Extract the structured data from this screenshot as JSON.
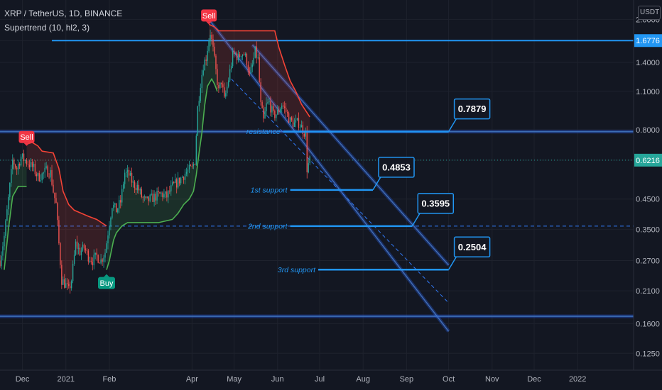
{
  "header": {
    "symbol_line": "XRP / TetherUS, 1D, BINANCE",
    "indicator_line": "Supertrend (10, hl2, 3)"
  },
  "price_axis": {
    "unit": "USDT",
    "ticks": [
      "2.0000",
      "1.6776",
      "1.4000",
      "1.1000",
      "0.8000",
      "0.6216",
      "0.4500",
      "0.3500",
      "0.2700",
      "0.2100",
      "0.1600",
      "0.1250"
    ],
    "current_price": "0.6216",
    "marked_level": "1.6776"
  },
  "time_axis": {
    "ticks": [
      "Dec",
      "2021",
      "Feb",
      "Apr",
      "May",
      "Jun",
      "Jul",
      "Aug",
      "Sep",
      "Oct",
      "Nov",
      "Dec",
      "2022"
    ]
  },
  "signals": [
    {
      "label": "Sell",
      "color": "#f23645"
    },
    {
      "label": "Sell",
      "color": "#f23645"
    },
    {
      "label": "Buy",
      "color": "#089981"
    }
  ],
  "levels": [
    {
      "name": "resistance",
      "value": "0.7879"
    },
    {
      "name": "1st support",
      "value": "0.4853"
    },
    {
      "name": "2nd support",
      "value": "0.3595"
    },
    {
      "name": "3rd support",
      "value": "0.2504"
    }
  ],
  "colors": {
    "background": "#131722",
    "up_candle": "#26a69a",
    "down_candle": "#ef5350",
    "accent": "#2196f3",
    "supertrend_up": "#4caf50",
    "supertrend_down": "#f44336"
  },
  "chart_data": {
    "type": "candlestick",
    "scale": "log",
    "y_range": [
      0.11,
      2.35
    ],
    "x_range": [
      "2020-11-15",
      "2022-02-15"
    ],
    "price_ticks": [
      2.0,
      1.6776,
      1.4,
      1.1,
      0.8,
      0.6216,
      0.45,
      0.35,
      0.27,
      0.21,
      0.16,
      0.125
    ],
    "time_ticks": [
      "2020-12-01",
      "2021-01-01",
      "2021-02-01",
      "2021-04-01",
      "2021-05-01",
      "2021-06-01",
      "2021-07-01",
      "2021-08-01",
      "2021-09-01",
      "2021-10-01",
      "2021-11-01",
      "2021-12-01",
      "2022-01-01"
    ],
    "path": [
      [
        "2020-11-15",
        0.27
      ],
      [
        "2020-11-18",
        0.33
      ],
      [
        "2020-11-21",
        0.45
      ],
      [
        "2020-11-24",
        0.62
      ],
      [
        "2020-11-27",
        0.58
      ],
      [
        "2020-11-30",
        0.64
      ],
      [
        "2020-12-03",
        0.62
      ],
      [
        "2020-12-06",
        0.6
      ],
      [
        "2020-12-09",
        0.58
      ],
      [
        "2020-12-12",
        0.54
      ],
      [
        "2020-12-15",
        0.55
      ],
      [
        "2020-12-18",
        0.57
      ],
      [
        "2020-12-21",
        0.56
      ],
      [
        "2020-12-23",
        0.48
      ],
      [
        "2020-12-25",
        0.43
      ],
      [
        "2020-12-27",
        0.31
      ],
      [
        "2020-12-29",
        0.23
      ],
      [
        "2021-01-01",
        0.22
      ],
      [
        "2021-01-03",
        0.21
      ],
      [
        "2021-01-05",
        0.23
      ],
      [
        "2021-01-08",
        0.31
      ],
      [
        "2021-01-11",
        0.29
      ],
      [
        "2021-01-14",
        0.3
      ],
      [
        "2021-01-17",
        0.28
      ],
      [
        "2021-01-20",
        0.27
      ],
      [
        "2021-01-23",
        0.28
      ],
      [
        "2021-01-26",
        0.27
      ],
      [
        "2021-01-29",
        0.29
      ],
      [
        "2021-02-01",
        0.37
      ],
      [
        "2021-02-03",
        0.43
      ],
      [
        "2021-02-06",
        0.41
      ],
      [
        "2021-02-09",
        0.44
      ],
      [
        "2021-02-12",
        0.56
      ],
      [
        "2021-02-15",
        0.55
      ],
      [
        "2021-02-18",
        0.51
      ],
      [
        "2021-02-21",
        0.5
      ],
      [
        "2021-02-24",
        0.46
      ],
      [
        "2021-02-27",
        0.44
      ],
      [
        "2021-03-02",
        0.45
      ],
      [
        "2021-03-06",
        0.46
      ],
      [
        "2021-03-10",
        0.47
      ],
      [
        "2021-03-14",
        0.46
      ],
      [
        "2021-03-18",
        0.5
      ],
      [
        "2021-03-22",
        0.52
      ],
      [
        "2021-03-26",
        0.55
      ],
      [
        "2021-03-29",
        0.57
      ],
      [
        "2021-04-01",
        0.58
      ],
      [
        "2021-04-03",
        0.62
      ],
      [
        "2021-04-05",
        0.96
      ],
      [
        "2021-04-07",
        1.18
      ],
      [
        "2021-04-09",
        1.37
      ],
      [
        "2021-04-11",
        1.46
      ],
      [
        "2021-04-13",
        1.7
      ],
      [
        "2021-04-14",
        1.8
      ],
      [
        "2021-04-16",
        1.55
      ],
      [
        "2021-04-18",
        1.3
      ],
      [
        "2021-04-20",
        1.1
      ],
      [
        "2021-04-22",
        1.2
      ],
      [
        "2021-04-24",
        1.02
      ],
      [
        "2021-04-26",
        1.14
      ],
      [
        "2021-04-28",
        1.3
      ],
      [
        "2021-04-30",
        1.48
      ],
      [
        "2021-05-02",
        1.5
      ],
      [
        "2021-05-04",
        1.45
      ],
      [
        "2021-05-06",
        1.52
      ],
      [
        "2021-05-08",
        1.5
      ],
      [
        "2021-05-10",
        1.42
      ],
      [
        "2021-05-12",
        1.25
      ],
      [
        "2021-05-14",
        1.36
      ],
      [
        "2021-05-16",
        1.53
      ],
      [
        "2021-05-18",
        1.43
      ],
      [
        "2021-05-20",
        0.98
      ],
      [
        "2021-05-22",
        0.86
      ],
      [
        "2021-05-24",
        0.98
      ],
      [
        "2021-05-26",
        1.0
      ],
      [
        "2021-05-29",
        0.9
      ],
      [
        "2021-06-01",
        0.92
      ],
      [
        "2021-06-04",
        0.99
      ],
      [
        "2021-06-07",
        0.93
      ],
      [
        "2021-06-10",
        0.86
      ],
      [
        "2021-06-13",
        0.84
      ],
      [
        "2021-06-16",
        0.85
      ],
      [
        "2021-06-19",
        0.8
      ],
      [
        "2021-06-21",
        0.77
      ],
      [
        "2021-06-22",
        0.58
      ],
      [
        "2021-06-24",
        0.62
      ]
    ],
    "supertrend": {
      "down": [
        [
          [
            "2020-12-04",
            0.71
          ],
          [
            "2020-12-08",
            0.72
          ],
          [
            "2020-12-12",
            0.7
          ],
          [
            "2020-12-15",
            0.67
          ],
          [
            "2020-12-23",
            0.66
          ],
          [
            "2020-12-27",
            0.58
          ],
          [
            "2020-12-30",
            0.48
          ],
          [
            "2021-01-03",
            0.43
          ],
          [
            "2021-01-07",
            0.41
          ],
          [
            "2021-01-12",
            0.4
          ],
          [
            "2021-01-17",
            0.39
          ],
          [
            "2021-01-23",
            0.38
          ],
          [
            "2021-01-30",
            0.36
          ]
        ],
        [
          [
            "2021-04-13",
            1.92
          ],
          [
            "2021-04-17",
            1.88
          ],
          [
            "2021-04-20",
            1.82
          ],
          [
            "2021-05-30",
            1.82
          ],
          [
            "2021-06-02",
            1.58
          ],
          [
            "2021-06-06",
            1.37
          ],
          [
            "2021-06-10",
            1.2
          ],
          [
            "2021-06-14",
            1.1
          ],
          [
            "2021-06-18",
            0.99
          ],
          [
            "2021-06-24",
            0.89
          ]
        ]
      ],
      "up": [
        [
          [
            "2020-11-18",
            0.25
          ],
          [
            "2020-11-21",
            0.35
          ],
          [
            "2020-11-24",
            0.46
          ],
          [
            "2020-11-28",
            0.5
          ],
          [
            "2020-12-04",
            0.5
          ]
        ],
        [
          [
            "2021-01-30",
            0.25
          ],
          [
            "2021-02-01",
            0.27
          ],
          [
            "2021-02-04",
            0.32
          ],
          [
            "2021-02-06",
            0.34
          ],
          [
            "2021-02-10",
            0.36
          ],
          [
            "2021-02-14",
            0.37
          ],
          [
            "2021-02-20",
            0.37
          ],
          [
            "2021-03-08",
            0.37
          ],
          [
            "2021-03-18",
            0.38
          ],
          [
            "2021-03-22",
            0.4
          ],
          [
            "2021-03-26",
            0.43
          ],
          [
            "2021-03-30",
            0.45
          ],
          [
            "2021-04-02",
            0.48
          ],
          [
            "2021-04-04",
            0.55
          ],
          [
            "2021-04-06",
            0.66
          ],
          [
            "2021-04-08",
            0.78
          ],
          [
            "2021-04-10",
            0.98
          ],
          [
            "2021-04-12",
            1.15
          ],
          [
            "2021-04-15",
            1.22
          ],
          [
            "2021-04-17",
            1.17
          ],
          [
            "2021-04-19",
            1.1
          ]
        ]
      ]
    },
    "signal_points": [
      {
        "label": "Sell",
        "date": "2021-04-13",
        "price": 1.92,
        "kind": "sell"
      },
      {
        "label": "Sell",
        "date": "2020-12-04",
        "price": 0.7,
        "kind": "sell"
      },
      {
        "label": "Buy",
        "date": "2021-01-30",
        "price": 0.25,
        "kind": "buy"
      }
    ],
    "horizontal_levels": [
      {
        "price": 1.6776,
        "from": "2020-12-22",
        "kind": "blue"
      },
      {
        "price": 0.7879,
        "from": "2020-11-15",
        "kind": "band"
      },
      {
        "price": 0.17,
        "from": "2020-11-15",
        "kind": "band"
      },
      {
        "price": 0.3595,
        "from": "2020-11-15",
        "kind": "dashed"
      },
      {
        "price": 0.6216,
        "from": "2020-11-15",
        "kind": "dotted"
      }
    ],
    "trend_lines": [
      {
        "from": [
          "2021-04-13",
          2.0
        ],
        "to": [
          "2021-10-01",
          0.15
        ],
        "kind": "channel"
      },
      {
        "from": [
          "2021-05-14",
          1.62
        ],
        "to": [
          "2021-10-01",
          0.26
        ],
        "kind": "channel"
      },
      {
        "from": [
          "2021-04-29",
          1.22
        ],
        "to": [
          "2021-10-01",
          0.19
        ],
        "kind": "dashed"
      }
    ],
    "level_callouts": [
      {
        "name": "resistance",
        "value": 0.7879,
        "line_from": "2021-06-05",
        "line_to": "2021-10-01"
      },
      {
        "name": "1st support",
        "value": 0.4853,
        "line_from": "2021-06-10",
        "line_to": "2021-08-08"
      },
      {
        "name": "2nd support",
        "value": 0.3595,
        "line_from": "2021-06-10",
        "line_to": "2021-09-05"
      },
      {
        "name": "3rd support",
        "value": 0.2504,
        "line_from": "2021-06-30",
        "line_to": "2021-10-01"
      }
    ]
  }
}
